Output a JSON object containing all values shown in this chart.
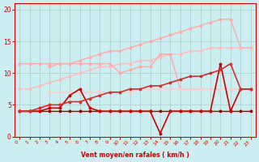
{
  "x": [
    0,
    1,
    2,
    3,
    4,
    5,
    6,
    7,
    8,
    9,
    10,
    11,
    12,
    13,
    14,
    15,
    16,
    17,
    18,
    19,
    20,
    21,
    22,
    23
  ],
  "background_color": "#cceef0",
  "grid_color": "#aacccc",
  "xlabel": "Vent moyen/en rafales ( km/h )",
  "xlabel_color": "#cc0000",
  "series": [
    {
      "data": [
        11.5,
        11.5,
        11.5,
        11.5,
        11.5,
        11.5,
        12.0,
        12.5,
        13.0,
        13.5,
        13.5,
        14.0,
        14.5,
        15.0,
        15.5,
        16.0,
        16.5,
        17.0,
        17.5,
        18.0,
        18.5,
        18.5,
        14.0,
        14.0
      ],
      "color": "#ffaaaa",
      "linewidth": 1.0,
      "marker": "o"
    },
    {
      "data": [
        7.5,
        7.5,
        8.0,
        8.5,
        9.0,
        9.5,
        10.0,
        10.5,
        11.0,
        11.0,
        11.5,
        11.5,
        12.0,
        12.0,
        12.5,
        13.0,
        13.0,
        13.5,
        13.5,
        14.0,
        14.0,
        14.0,
        14.0,
        14.0
      ],
      "color": "#ffbbbb",
      "linewidth": 1.0,
      "marker": "o"
    },
    {
      "data": [
        null,
        null,
        null,
        11.0,
        11.5,
        11.5,
        11.5,
        11.5,
        11.5,
        11.5,
        10.0,
        10.5,
        11.0,
        11.0,
        13.0,
        13.0,
        7.5,
        7.5,
        7.5,
        null,
        null,
        null,
        null,
        null
      ],
      "color": "#ffaaaa",
      "linewidth": 1.0,
      "marker": "o"
    },
    {
      "data": [
        null,
        null,
        null,
        7.0,
        7.0,
        7.0,
        7.0,
        7.0,
        7.0,
        7.0,
        7.0,
        7.0,
        7.5,
        7.5,
        7.5,
        7.5,
        7.5,
        7.5,
        7.5,
        7.5,
        7.5,
        7.5,
        7.5,
        7.5
      ],
      "color": "#ffcccc",
      "linewidth": 1.0,
      "marker": "o"
    },
    {
      "data": [
        4.0,
        4.0,
        4.0,
        4.0,
        4.0,
        4.0,
        4.0,
        4.0,
        4.0,
        4.0,
        4.0,
        4.0,
        4.0,
        4.0,
        4.0,
        4.0,
        4.0,
        4.0,
        4.0,
        4.0,
        4.0,
        4.0,
        4.0,
        4.0
      ],
      "color": "#990000",
      "linewidth": 1.0,
      "marker": "o"
    },
    {
      "data": [
        4.0,
        4.0,
        4.0,
        4.5,
        4.5,
        6.5,
        7.5,
        4.5,
        4.0,
        4.0,
        4.0,
        4.0,
        4.0,
        4.0,
        0.5,
        4.0,
        4.0,
        4.0,
        4.0,
        4.0,
        11.5,
        4.0,
        7.5,
        7.5
      ],
      "color": "#cc0000",
      "linewidth": 1.2,
      "marker": "o"
    },
    {
      "data": [
        4.0,
        4.0,
        4.5,
        5.0,
        5.0,
        5.5,
        5.5,
        6.0,
        6.5,
        7.0,
        7.0,
        7.5,
        7.5,
        8.0,
        8.0,
        8.5,
        9.0,
        9.5,
        9.5,
        10.0,
        10.5,
        11.5,
        7.5,
        7.5
      ],
      "color": "#cc3333",
      "linewidth": 1.2,
      "marker": "o"
    }
  ],
  "ylim": [
    0,
    21
  ],
  "xlim": [
    -0.5,
    23.5
  ],
  "yticks": [
    0,
    5,
    10,
    15,
    20
  ],
  "xticks": [
    0,
    1,
    2,
    3,
    4,
    5,
    6,
    7,
    8,
    9,
    10,
    11,
    12,
    13,
    14,
    15,
    16,
    17,
    18,
    19,
    20,
    21,
    22,
    23
  ]
}
